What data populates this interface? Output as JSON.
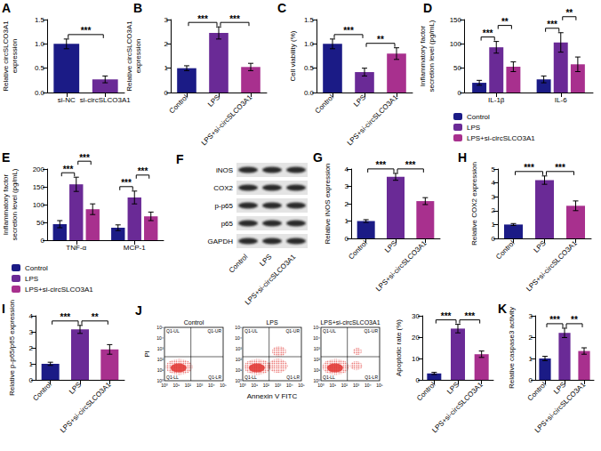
{
  "chart_data": [
    {
      "type": "bar",
      "title": "A",
      "ylabel": "Relative circSLCO3A1\nexpression",
      "categories": [
        "si-NC",
        "si-circSLCO3A1"
      ],
      "values": [
        1.0,
        0.27
      ],
      "errors": [
        0.1,
        0.07
      ],
      "colors": [
        "#1b1b86",
        "#6a2a96"
      ],
      "ylim": [
        0,
        1.5
      ],
      "yticks": [
        {
          "value": 0,
          "label": "0.0"
        },
        {
          "value": 0.5,
          "label": "0.5"
        },
        {
          "value": 1,
          "label": "1.0"
        },
        {
          "value": 1.5,
          "label": "1.5"
        }
      ],
      "grid": false,
      "annotations": [
        {
          "text": "***",
          "from": "si-NC",
          "to": "si-circSLCO3A1"
        }
      ]
    },
    {
      "type": "bar",
      "title": "B",
      "ylabel": "Relative circSLCO3A1\nexpression",
      "categories": [
        "Control",
        "LPS",
        "LPS+si-circSLCO3A1"
      ],
      "values": [
        1.0,
        2.45,
        1.05
      ],
      "errors": [
        0.1,
        0.25,
        0.15
      ],
      "colors": [
        "#1b1b86",
        "#6a2a96",
        "#a8308e"
      ],
      "ylim": [
        0,
        3
      ],
      "yticks": [
        0,
        1,
        2,
        3
      ],
      "grid": false,
      "annotations": [
        {
          "text": "***",
          "from": "Control",
          "to": "LPS"
        },
        {
          "text": "***",
          "from": "LPS",
          "to": "LPS+si-circSLCO3A1"
        }
      ]
    },
    {
      "type": "bar",
      "title": "C",
      "ylabel": "Cell viability (%)",
      "categories": [
        "Control",
        "LPS",
        "LPS+si-circSLCO3A1"
      ],
      "values": [
        1.0,
        0.42,
        0.8
      ],
      "errors": [
        0.1,
        0.08,
        0.12
      ],
      "colors": [
        "#1b1b86",
        "#6a2a96",
        "#a8308e"
      ],
      "ylim": [
        0,
        1.5
      ],
      "yticks": [
        {
          "value": 0,
          "label": "0.0"
        },
        {
          "value": 0.5,
          "label": "0.5"
        },
        {
          "value": 1,
          "label": "1.0"
        },
        {
          "value": 1.5,
          "label": "1.5"
        }
      ],
      "grid": false,
      "annotations": [
        {
          "text": "***",
          "from": "Control",
          "to": "LPS"
        },
        {
          "text": "**",
          "from": "LPS",
          "to": "LPS+si-circSLCO3A1"
        }
      ]
    },
    {
      "type": "bar",
      "title": "D",
      "ylabel": "Inflammatory factor\nsecretion level (pg/mL)",
      "categories": [
        "IL-1β",
        "IL-6"
      ],
      "series": [
        {
          "name": "Control",
          "color": "#1b1b86",
          "values": [
            20,
            27
          ],
          "errors": [
            5,
            7
          ]
        },
        {
          "name": "LPS",
          "color": "#6a2a96",
          "values": [
            93,
            103
          ],
          "errors": [
            12,
            20
          ]
        },
        {
          "name": "LPS+si-circSLCO3A1",
          "color": "#a8308e",
          "values": [
            53,
            58
          ],
          "errors": [
            10,
            15
          ]
        }
      ],
      "ylim": [
        0,
        150
      ],
      "yticks": [
        0,
        50,
        100,
        150
      ],
      "grid": false,
      "legend": "bottom",
      "annotations": [
        {
          "text": "***",
          "category": "IL-1β",
          "from": "Control",
          "to": "LPS"
        },
        {
          "text": "**",
          "category": "IL-1β",
          "from": "LPS",
          "to": "LPS+si-circSLCO3A1"
        },
        {
          "text": "***",
          "category": "IL-6",
          "from": "Control",
          "to": "LPS"
        },
        {
          "text": "**",
          "category": "IL-6",
          "from": "LPS",
          "to": "LPS+si-circSLCO3A1"
        }
      ]
    },
    {
      "type": "bar",
      "title": "E",
      "ylabel": "Inflammatory factor\nsecretion level (pg/mL)",
      "categories": [
        "TNF-α",
        "MCP-1"
      ],
      "series": [
        {
          "name": "Control",
          "color": "#1b1b86",
          "values": [
            45,
            35
          ],
          "errors": [
            10,
            8
          ]
        },
        {
          "name": "LPS",
          "color": "#6a2a96",
          "values": [
            157,
            120
          ],
          "errors": [
            20,
            18
          ]
        },
        {
          "name": "LPS+si-circSLCO3A1",
          "color": "#a8308e",
          "values": [
            87,
            67
          ],
          "errors": [
            15,
            12
          ]
        }
      ],
      "ylim": [
        0,
        200
      ],
      "yticks": [
        0,
        50,
        100,
        150,
        200
      ],
      "grid": false,
      "legend": "bottom",
      "annotations": [
        {
          "text": "***",
          "category": "TNF-α",
          "from": "Control",
          "to": "LPS"
        },
        {
          "text": "***",
          "category": "TNF-α",
          "from": "LPS",
          "to": "LPS+si-circSLCO3A1"
        },
        {
          "text": "***",
          "category": "MCP-1",
          "from": "Control",
          "to": "LPS"
        },
        {
          "text": "***",
          "category": "MCP-1",
          "from": "LPS",
          "to": "LPS+si-circSLCO3A1"
        }
      ]
    },
    {
      "type": "bar",
      "title": "G",
      "ylabel": "Relative iNOS expression",
      "categories": [
        "Control",
        "LPS",
        "LPS+si-circSLCO3A1"
      ],
      "values": [
        1.0,
        3.55,
        2.15
      ],
      "errors": [
        0.08,
        0.2,
        0.2
      ],
      "colors": [
        "#1b1b86",
        "#6a2a96",
        "#a8308e"
      ],
      "ylim": [
        0,
        4
      ],
      "yticks": [
        0,
        1,
        2,
        3,
        4
      ],
      "grid": false,
      "annotations": [
        {
          "text": "***",
          "from": "Control",
          "to": "LPS"
        },
        {
          "text": "***",
          "from": "LPS",
          "to": "LPS+si-circSLCO3A1"
        }
      ]
    },
    {
      "type": "bar",
      "title": "H",
      "ylabel": "Relative COX2 expression",
      "categories": [
        "Control",
        "LPS",
        "LPS+si-circSLCO3A1"
      ],
      "values": [
        1.0,
        4.2,
        2.35
      ],
      "errors": [
        0.07,
        0.3,
        0.35
      ],
      "colors": [
        "#1b1b86",
        "#6a2a96",
        "#a8308e"
      ],
      "ylim": [
        0,
        5
      ],
      "yticks": [
        0,
        1,
        2,
        3,
        4,
        5
      ],
      "grid": false,
      "annotations": [
        {
          "text": "***",
          "from": "Control",
          "to": "LPS"
        },
        {
          "text": "***",
          "from": "LPS",
          "to": "LPS+si-circSLCO3A1"
        }
      ]
    },
    {
      "type": "bar",
      "title": "I",
      "ylabel": "Relative p-p65/p65 expression",
      "categories": [
        "Control",
        "LPS",
        "LPS+si-circSLCO3A1"
      ],
      "values": [
        1.0,
        3.15,
        1.9
      ],
      "errors": [
        0.1,
        0.25,
        0.3
      ],
      "colors": [
        "#1b1b86",
        "#6a2a96",
        "#a8308e"
      ],
      "ylim": [
        0,
        4
      ],
      "yticks": [
        0,
        1,
        2,
        3,
        4
      ],
      "grid": false,
      "annotations": [
        {
          "text": "***",
          "from": "Control",
          "to": "LPS"
        },
        {
          "text": "**",
          "from": "LPS",
          "to": "LPS+si-circSLCO3A1"
        }
      ]
    },
    {
      "type": "bar",
      "ylabel": "Apoptotic rate (%)",
      "categories": [
        "Control",
        "LPS",
        "LPS+si-circSLCO3A1"
      ],
      "values": [
        3,
        24,
        12
      ],
      "errors": [
        0.5,
        2,
        1.5
      ],
      "colors": [
        "#1b1b86",
        "#6a2a96",
        "#a8308e"
      ],
      "ylim": [
        0,
        30
      ],
      "yticks": [
        0,
        10,
        20,
        30
      ],
      "grid": false,
      "annotations": [
        {
          "text": "***",
          "from": "Control",
          "to": "LPS"
        },
        {
          "text": "***",
          "from": "LPS",
          "to": "LPS+si-circSLCO3A1"
        }
      ]
    },
    {
      "type": "bar",
      "title": "K",
      "ylabel": "Relative caspase3 activity",
      "categories": [
        "Control",
        "LPS",
        "LPS+si-circSLCO3A1"
      ],
      "values": [
        1.0,
        2.2,
        1.35
      ],
      "errors": [
        0.1,
        0.22,
        0.15
      ],
      "colors": [
        "#1b1b86",
        "#6a2a96",
        "#a8308e"
      ],
      "ylim": [
        0,
        3
      ],
      "yticks": [
        0,
        1,
        2,
        3
      ],
      "grid": false,
      "annotations": [
        {
          "text": "***",
          "from": "Control",
          "to": "LPS"
        },
        {
          "text": "**",
          "from": "LPS",
          "to": "LPS+si-circSLCO3A1"
        }
      ]
    }
  ],
  "blot": {
    "title": "F",
    "proteins": [
      "iNOS",
      "COX2",
      "p-p65",
      "p65",
      "GAPDH"
    ],
    "lanes": [
      "Control",
      "LPS",
      "LPS+si-circSLCO3A1"
    ]
  },
  "flow": {
    "title": "J",
    "xlabel": "Annexin V FITC",
    "ylabel": "PI",
    "plots": [
      "Control",
      "LPS",
      "LPS+si-circSLCO3A1"
    ],
    "quadrants": [
      "Q1-UL",
      "Q1-UR",
      "Q1-LL",
      "Q1-LR"
    ],
    "ticks": [
      "10⁰",
      "10¹",
      "10²",
      "10³",
      "10⁴",
      "10⁵"
    ]
  }
}
